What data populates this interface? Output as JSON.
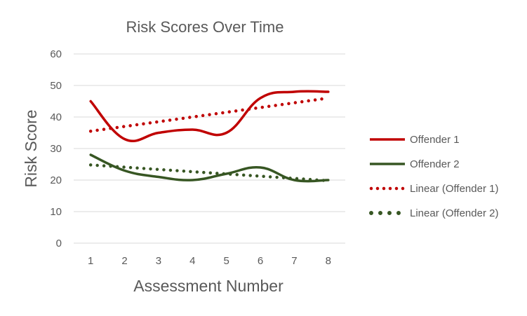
{
  "chart_data": {
    "type": "line",
    "title": "Risk Scores Over Time",
    "xlabel": "Assessment Number",
    "ylabel": "Risk Score",
    "categories": [
      "1",
      "2",
      "3",
      "4",
      "5",
      "6",
      "7",
      "8"
    ],
    "ylim": [
      0,
      60
    ],
    "yticks": [
      "0",
      "10",
      "20",
      "30",
      "40",
      "50",
      "60"
    ],
    "grid": true,
    "legend_position": "right",
    "series": [
      {
        "name": "Offender 1",
        "values": [
          45,
          33,
          35,
          36,
          35,
          46,
          48,
          48
        ],
        "color": "#c00000",
        "style": "solid"
      },
      {
        "name": "Offender 2",
        "values": [
          28,
          23,
          21,
          20,
          22,
          24,
          20,
          20
        ],
        "color": "#375623",
        "style": "solid"
      }
    ],
    "trendlines": [
      {
        "name": "Linear (Offender 1)",
        "start": 35.5,
        "end": 46,
        "color": "#c00000",
        "style": "dotted"
      },
      {
        "name": "Linear (Offender 2)",
        "start": 24.8,
        "end": 19.8,
        "color": "#375623",
        "style": "dotted"
      }
    ]
  }
}
